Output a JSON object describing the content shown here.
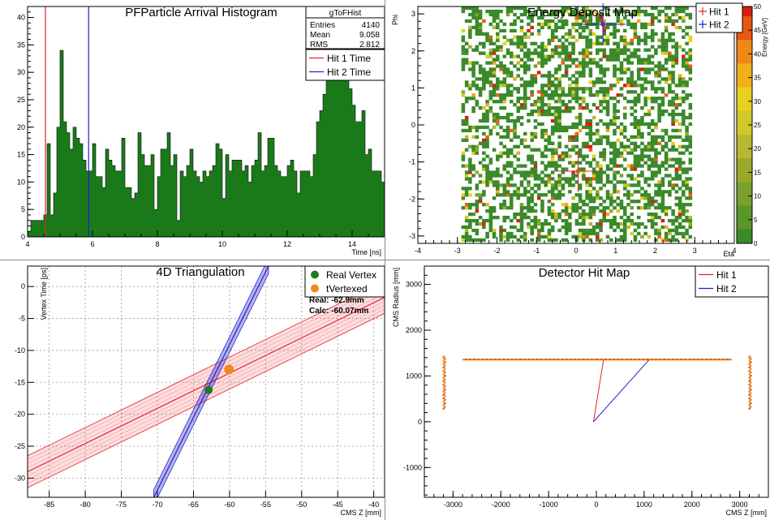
{
  "colors": {
    "hist_fill": "#1a7a1a",
    "hit1": "#e8202a",
    "hit2": "#2020c8",
    "vertex_real": "#1f7a1f",
    "vertex_calc": "#f08a1e"
  },
  "chart_data": [
    {
      "type": "bar",
      "title": "PFParticle Arrival Histogram",
      "xlabel": "Time [ns]",
      "ylabel": "",
      "xlim": [
        4,
        15
      ],
      "ylim": [
        0,
        42
      ],
      "xticks": [
        "4",
        "6",
        "8",
        "10",
        "12",
        "14"
      ],
      "yticks": [
        "0",
        "5",
        "10",
        "15",
        "20",
        "25",
        "30",
        "35",
        "40"
      ],
      "bin_start": 4.0,
      "bin_width": 0.1,
      "values": [
        1,
        3,
        3,
        3,
        3,
        4,
        17,
        4,
        8,
        20,
        34,
        21,
        19,
        16,
        20,
        18,
        17,
        14,
        12,
        12,
        17,
        11,
        11,
        9,
        16,
        14,
        13,
        12,
        12,
        18,
        9,
        9,
        7,
        8,
        19,
        15,
        13,
        13,
        15,
        5,
        11,
        16,
        16,
        19,
        13,
        15,
        3,
        12,
        11,
        13,
        16,
        12,
        11,
        10,
        12,
        11,
        12,
        13,
        17,
        16,
        7,
        15,
        12,
        14,
        14,
        14,
        12,
        13,
        10,
        13,
        14,
        19,
        12,
        13,
        18,
        18,
        13,
        12,
        11,
        11,
        13,
        14,
        12,
        8,
        12,
        12,
        12,
        11,
        15,
        21,
        23,
        26,
        34,
        41,
        40,
        37,
        40,
        35,
        31,
        27,
        24,
        21,
        21,
        23,
        15,
        16,
        12,
        12,
        12,
        10,
        15,
        12,
        13,
        12,
        13,
        15,
        11,
        12,
        10,
        9,
        10,
        8,
        7,
        8,
        7,
        9,
        11,
        8,
        7,
        7,
        5,
        7,
        6,
        5,
        4,
        3,
        4,
        2,
        2,
        3,
        2,
        1
      ],
      "markers": [
        {
          "name": "Hit 1 Time",
          "x": 4.55,
          "color": "#e8202a"
        },
        {
          "name": "Hit 2 Time",
          "x": 5.88,
          "color": "#2020c8"
        }
      ],
      "stats": {
        "title": "gToFHist",
        "rows": [
          {
            "label": "Entries",
            "value": "4140"
          },
          {
            "label": "Mean",
            "value": "9.058"
          },
          {
            "label": "RMS",
            "value": "2.812"
          }
        ]
      },
      "legend": [
        {
          "label": "Hit 1 Time",
          "color": "#e8202a"
        },
        {
          "label": "Hit 2 Time",
          "color": "#2020c8"
        }
      ],
      "legend_position": "top-right"
    },
    {
      "type": "heatmap",
      "title": "Energy Deposit Map",
      "xlabel": "Eta",
      "ylabel": "Phi",
      "zlabel": "Energy [GeV]",
      "xlim": [
        -4,
        4
      ],
      "ylim": [
        -3.2,
        3.2
      ],
      "xticks": [
        "-4",
        "-3",
        "-2",
        "-1",
        "0",
        "1",
        "2",
        "3",
        "4"
      ],
      "yticks": [
        "-3",
        "-2",
        "-1",
        "0",
        "1",
        "2",
        "3"
      ],
      "zticks": [
        "0",
        "5",
        "10",
        "15",
        "20",
        "25",
        "30",
        "35",
        "40",
        "45",
        "50"
      ],
      "zlim": [
        0,
        50
      ],
      "cell_eta": 0.087,
      "cell_phi": 0.087,
      "eta_range": [
        -2.9,
        2.9
      ],
      "occupancy": 0.5,
      "crosses": [
        {
          "label": "Hit 1",
          "eta": 0.05,
          "phi": -1.25,
          "color": "#e8202a"
        },
        {
          "label": "Hit 2",
          "eta": 0.68,
          "phi": 2.72,
          "color": "#2020c8"
        }
      ],
      "legend": [
        {
          "label": "Hit 1",
          "color": "#e8202a"
        },
        {
          "label": "Hit 2",
          "color": "#2020c8"
        }
      ],
      "legend_position": "top-right"
    },
    {
      "type": "scatter",
      "title": "4D Triangulation",
      "xlabel": "CMS Z [mm]",
      "ylabel": "Vertex Time [ps]",
      "xlim": [
        -88,
        -38.5
      ],
      "ylim": [
        -33,
        3.2
      ],
      "xticks": [
        "-85",
        "-80",
        "-75",
        "-70",
        "-65",
        "-60",
        "-55",
        "-50",
        "-45",
        "-40"
      ],
      "yticks": [
        "-30",
        "-25",
        "-20",
        "-15",
        "-10",
        "-5",
        "0"
      ],
      "bands": [
        {
          "name": "Hit 1",
          "color": "#e8202a",
          "line": [
            [
              -88,
              -29
            ],
            [
              -38.5,
              -1.7
            ]
          ],
          "halfwidth": 2.5
        },
        {
          "name": "Hit 2",
          "color": "#2020c8",
          "line": [
            [
              -70.5,
              -33
            ],
            [
              -54.6,
              3.2
            ]
          ],
          "halfwidth": 1.2
        }
      ],
      "points": [
        {
          "label": "Real Vertex",
          "x": -62.9,
          "y": -16.2,
          "color": "#1f7a1f"
        },
        {
          "label": "tVertexed",
          "x": -60.07,
          "y": -13.0,
          "color": "#f08a1e"
        }
      ],
      "annotations": [
        "Real: -62.9mm",
        "Calc: -60.07mm"
      ],
      "legend": [
        {
          "label": "Real Vertex",
          "color": "#1f7a1f"
        },
        {
          "label": "tVertexed",
          "color": "#f08a1e"
        }
      ],
      "legend_position": "top-right"
    },
    {
      "type": "scatter",
      "title": "Detector Hit Map",
      "xlabel": "CMS Z [mm]",
      "ylabel": "CMS Radius [mm]",
      "xlim": [
        -3600,
        3600
      ],
      "ylim": [
        -1650,
        3400
      ],
      "xticks": [
        "-3000",
        "-2000",
        "-1000",
        "0",
        "1000",
        "2000",
        "3000"
      ],
      "yticks": [
        "-1000",
        "0",
        "1000",
        "2000",
        "3000"
      ],
      "barrel": {
        "z": [
          -2800,
          2800
        ],
        "r": 1350
      },
      "endcaps": [
        {
          "z": -3200,
          "r": [
            300,
            1450
          ]
        },
        {
          "z": 3200,
          "r": [
            300,
            1450
          ]
        }
      ],
      "tracks": [
        {
          "name": "Hit 1",
          "color": "#e8202a",
          "points": [
            [
              -60,
              0
            ],
            [
              150,
              1350
            ]
          ]
        },
        {
          "name": "Hit 2",
          "color": "#2020c8",
          "points": [
            [
              -60,
              0
            ],
            [
              1100,
              1350
            ]
          ]
        }
      ],
      "legend": [
        {
          "label": "Hit 1",
          "color": "#e8202a"
        },
        {
          "label": "Hit 2",
          "color": "#2020c8"
        }
      ],
      "legend_position": "top-right"
    }
  ]
}
